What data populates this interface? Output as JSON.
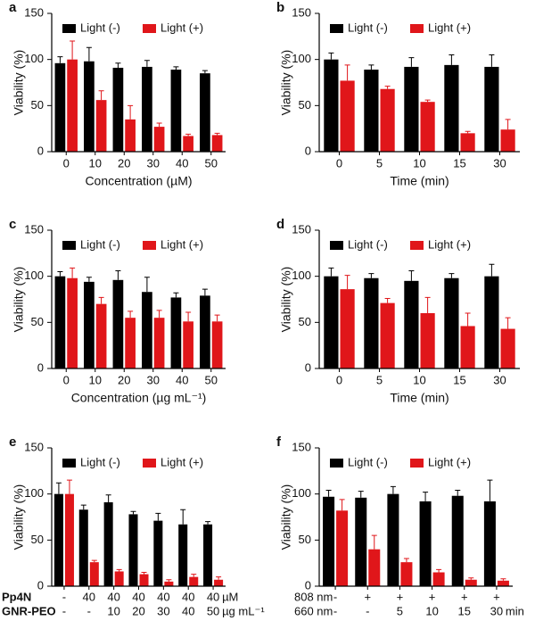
{
  "chart_data": [
    {
      "type": "bar",
      "label": "a",
      "ylabel": "Viability (%)",
      "xlabel": "Concentration (µM)",
      "categories": [
        "0",
        "10",
        "20",
        "30",
        "40",
        "50"
      ],
      "series": [
        {
          "name": "Light (-)",
          "color": "#000000",
          "values": [
            96,
            98,
            91,
            92,
            89,
            85
          ],
          "errors": [
            7,
            15,
            5,
            7,
            3,
            3
          ]
        },
        {
          "name": "Light (+)",
          "color": "#e0161a",
          "values": [
            100,
            56,
            35,
            27,
            17,
            18
          ],
          "errors": [
            20,
            10,
            15,
            4,
            2,
            2
          ]
        }
      ],
      "ylim": [
        0,
        150
      ],
      "yticks": [
        0,
        50,
        100,
        150
      ],
      "legend": "top"
    },
    {
      "type": "bar",
      "label": "b",
      "ylabel": "Viability (%)",
      "xlabel": "Time (min)",
      "categories": [
        "0",
        "5",
        "10",
        "15",
        "30"
      ],
      "series": [
        {
          "name": "Light (-)",
          "color": "#000000",
          "values": [
            100,
            89,
            92,
            94,
            92
          ],
          "errors": [
            7,
            5,
            10,
            11,
            13
          ]
        },
        {
          "name": "Light (+)",
          "color": "#e0161a",
          "values": [
            77,
            68,
            54,
            20,
            24
          ],
          "errors": [
            17,
            3,
            2,
            2,
            11
          ]
        }
      ],
      "ylim": [
        0,
        150
      ],
      "yticks": [
        0,
        50,
        100,
        150
      ],
      "legend": "top"
    },
    {
      "type": "bar",
      "label": "c",
      "ylabel": "Viability (%)",
      "xlabel": "Concentration (µg mL⁻¹)",
      "categories": [
        "0",
        "10",
        "20",
        "30",
        "40",
        "50"
      ],
      "series": [
        {
          "name": "Light (-)",
          "color": "#000000",
          "values": [
            100,
            94,
            96,
            83,
            77,
            79
          ],
          "errors": [
            5,
            5,
            10,
            16,
            5,
            7
          ]
        },
        {
          "name": "Light (+)",
          "color": "#e0161a",
          "values": [
            98,
            70,
            55,
            55,
            51,
            51
          ],
          "errors": [
            11,
            7,
            7,
            8,
            10,
            7
          ]
        }
      ],
      "ylim": [
        0,
        150
      ],
      "yticks": [
        0,
        50,
        100,
        150
      ],
      "legend": "top"
    },
    {
      "type": "bar",
      "label": "d",
      "ylabel": "Viability (%)",
      "xlabel": "Time (min)",
      "categories": [
        "0",
        "5",
        "10",
        "15",
        "30"
      ],
      "series": [
        {
          "name": "Light (-)",
          "color": "#000000",
          "values": [
            100,
            98,
            95,
            98,
            100
          ],
          "errors": [
            9,
            5,
            11,
            5,
            13
          ]
        },
        {
          "name": "Light (+)",
          "color": "#e0161a",
          "values": [
            86,
            71,
            60,
            46,
            43
          ],
          "errors": [
            15,
            5,
            17,
            14,
            12
          ]
        }
      ],
      "ylim": [
        0,
        150
      ],
      "yticks": [
        0,
        50,
        100,
        150
      ],
      "legend": "top"
    },
    {
      "type": "bar",
      "label": "e",
      "ylabel": "Viability (%)",
      "category_rows": [
        {
          "name": "Pp4N",
          "labels": [
            "-",
            "40",
            "40",
            "40",
            "40",
            "40",
            "40"
          ],
          "unit": "µM"
        },
        {
          "name": "GNR-PEO",
          "labels": [
            "-",
            "-",
            "10",
            "20",
            "30",
            "40",
            "50"
          ],
          "unit": "µg mL⁻¹"
        }
      ],
      "series": [
        {
          "name": "Light (-)",
          "color": "#000000",
          "values": [
            100,
            83,
            91,
            78,
            71,
            67,
            67
          ],
          "errors": [
            12,
            5,
            8,
            3,
            8,
            16,
            3
          ]
        },
        {
          "name": "Light (+)",
          "color": "#e0161a",
          "values": [
            100,
            26,
            16,
            13,
            5,
            10,
            7
          ],
          "errors": [
            15,
            2,
            2,
            2,
            2,
            3,
            3
          ]
        }
      ],
      "ylim": [
        0,
        150
      ],
      "yticks": [
        0,
        50,
        100,
        150
      ],
      "legend": "top"
    },
    {
      "type": "bar",
      "label": "f",
      "ylabel": "Viability (%)",
      "category_rows": [
        {
          "name": "808 nm",
          "labels": [
            "-",
            "+",
            "+",
            "+",
            "+",
            "+"
          ]
        },
        {
          "name": "660 nm",
          "labels": [
            "-",
            "-",
            "5",
            "10",
            "15",
            "30"
          ],
          "unit": "min"
        }
      ],
      "series": [
        {
          "name": "Light (-)",
          "color": "#000000",
          "values": [
            97,
            96,
            100,
            92,
            98,
            92
          ],
          "errors": [
            7,
            7,
            8,
            10,
            6,
            23
          ]
        },
        {
          "name": "Light (+)",
          "color": "#e0161a",
          "values": [
            82,
            40,
            26,
            15,
            7,
            6
          ],
          "errors": [
            12,
            15,
            4,
            3,
            2,
            2
          ]
        }
      ],
      "ylim": [
        0,
        150
      ],
      "yticks": [
        0,
        50,
        100,
        150
      ],
      "legend": "top"
    }
  ]
}
